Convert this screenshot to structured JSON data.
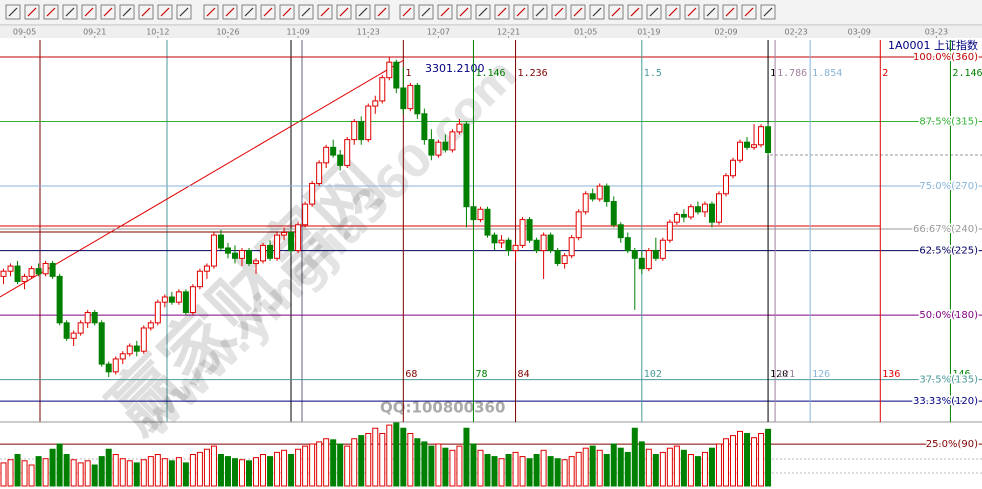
{
  "chart_data": {
    "type": "candlestick",
    "symbol": "1A0001",
    "name": "上证指数",
    "high_label": "3301.2100",
    "xlim": [
      -0.5,
      139.5
    ],
    "ylim": [
      16.3,
      103.3
    ],
    "volume_ylim": [
      0,
      60
    ],
    "up_color": "#e00000",
    "down_color": "#008000",
    "xticks": [
      {
        "value": 3,
        "label": "09-05"
      },
      {
        "value": 13,
        "label": "09-21"
      },
      {
        "value": 22,
        "label": "10-12"
      },
      {
        "value": 32,
        "label": "10-26"
      },
      {
        "value": 42,
        "label": "11-09"
      },
      {
        "value": 52,
        "label": "11-23"
      },
      {
        "value": 62,
        "label": "12-07"
      },
      {
        "value": 72,
        "label": "12-21"
      },
      {
        "value": 83,
        "label": "01-05"
      },
      {
        "value": 92,
        "label": "01-19"
      },
      {
        "value": 103,
        "label": "02-09"
      },
      {
        "value": 113,
        "label": "02-23"
      },
      {
        "value": 122,
        "label": "03-09"
      },
      {
        "value": 133,
        "label": "03-23"
      }
    ],
    "yticks": [
      {
        "value": 100,
        "label": "100.0%(360)",
        "color": "#c00000"
      },
      {
        "value": 87.5,
        "label": "87.5%(315)",
        "color": "#30b030"
      },
      {
        "value": 75,
        "label": "75.0%(270)",
        "color": "#88b4d8"
      },
      {
        "value": 66.67,
        "label": "66.67%(240)",
        "color": "#999999"
      },
      {
        "value": 62.5,
        "label": "62.5%(225)",
        "color": "#000060"
      },
      {
        "value": 50,
        "label": "50.0%(180)",
        "color": "#800080"
      },
      {
        "value": 37.5,
        "label": "37.5%(135)",
        "color": "#4a9a9a"
      },
      {
        "value": 33.33,
        "label": "33.33%(120)",
        "color": "#000080"
      },
      {
        "value": 25,
        "label": "25.0%(90)",
        "color": "#800000"
      }
    ],
    "time_lines": [
      {
        "top": "1",
        "count": 68,
        "color": "#800000"
      },
      {
        "top": "1.146",
        "count": 78,
        "color": "#008000"
      },
      {
        "top": "1.236",
        "count": 84,
        "color": "#800000"
      },
      {
        "top": "1.5",
        "count": 102,
        "color": "#4a9a9a"
      },
      {
        "top": "1",
        "count": 120,
        "color": "#000000"
      },
      {
        "top": "1.786",
        "count": 121,
        "color": "#a080a0"
      },
      {
        "top": "1.854",
        "count": 126,
        "color": "#88b4d8"
      },
      {
        "top": "2",
        "count": 136,
        "color": "#e00000"
      },
      {
        "top": "2.146",
        "count": 146,
        "color": "#008000"
      }
    ],
    "watermarks": [
      "赢家财富网",
      "www.yingjia360.com",
      "QQ:100800360"
    ],
    "ohlc": [
      [
        57.5,
        59,
        56,
        58.5
      ],
      [
        58.5,
        60,
        57.5,
        59.5
      ],
      [
        59.5,
        60.5,
        56,
        56.5
      ],
      [
        56.5,
        58,
        55,
        57.5
      ],
      [
        57.5,
        59.5,
        57,
        59
      ],
      [
        59,
        60,
        57.5,
        58
      ],
      [
        58,
        60.5,
        57.5,
        60
      ],
      [
        60,
        60.5,
        57,
        57.5
      ],
      [
        57.5,
        58,
        48,
        48.5
      ],
      [
        48.5,
        49,
        45,
        45.5
      ],
      [
        45.5,
        47,
        44,
        46.5
      ],
      [
        46.5,
        49,
        46,
        48.5
      ],
      [
        48.5,
        51,
        47.5,
        50.5
      ],
      [
        50.5,
        51,
        48,
        48.5
      ],
      [
        48.5,
        49,
        40,
        40.5
      ],
      [
        40.5,
        41,
        38,
        39
      ],
      [
        39,
        42,
        38.5,
        41.5
      ],
      [
        41.5,
        43,
        40.5,
        42.5
      ],
      [
        42.5,
        44.5,
        42,
        44
      ],
      [
        44,
        45,
        42,
        43
      ],
      [
        43,
        48,
        42.5,
        47.5
      ],
      [
        47.5,
        49,
        47,
        48.5
      ],
      [
        48.5,
        53,
        48,
        52.5
      ],
      [
        52.5,
        54,
        51.5,
        53.5
      ],
      [
        53.5,
        54.5,
        52,
        52.5
      ],
      [
        52.5,
        55,
        52,
        54.5
      ],
      [
        54.5,
        55,
        50,
        50.5
      ],
      [
        50.5,
        56,
        50,
        55.5
      ],
      [
        55.5,
        59,
        55,
        58.5
      ],
      [
        58.5,
        60,
        57,
        59.5
      ],
      [
        59.5,
        66,
        59,
        65.5
      ],
      [
        65.5,
        66.5,
        62.5,
        63
      ],
      [
        63,
        64,
        61,
        62
      ],
      [
        62,
        63.5,
        60,
        61
      ],
      [
        61,
        63,
        59.5,
        62.5
      ],
      [
        62.5,
        63,
        59.5,
        60
      ],
      [
        60,
        61,
        58,
        60.5
      ],
      [
        60.5,
        64,
        60,
        63.5
      ],
      [
        63.5,
        64.5,
        60.5,
        61
      ],
      [
        61,
        66,
        60.5,
        65.5
      ],
      [
        65.5,
        67,
        64.5,
        66
      ],
      [
        66,
        66.5,
        62,
        62.5
      ],
      [
        62.5,
        68,
        62,
        67.5
      ],
      [
        67.5,
        72,
        67,
        71.5
      ],
      [
        71.5,
        76,
        71,
        75.5
      ],
      [
        75.5,
        80,
        75,
        79.5
      ],
      [
        79.5,
        83,
        78.5,
        82.5
      ],
      [
        82.5,
        84,
        80.5,
        81
      ],
      [
        81,
        82,
        78,
        79
      ],
      [
        79,
        84.5,
        78.5,
        84
      ],
      [
        84,
        88,
        83,
        87.5
      ],
      [
        87.5,
        88.5,
        83,
        84
      ],
      [
        84,
        91,
        83.5,
        90.5
      ],
      [
        90.5,
        92.5,
        89,
        91.5
      ],
      [
        91.5,
        96.5,
        91,
        96
      ],
      [
        96,
        100,
        95.5,
        99
      ],
      [
        99,
        99.5,
        93,
        94
      ],
      [
        94,
        98,
        89,
        90
      ],
      [
        90,
        95,
        89.5,
        94.5
      ],
      [
        94.5,
        95,
        88,
        89
      ],
      [
        89,
        90,
        83,
        84
      ],
      [
        84,
        86,
        80,
        81
      ],
      [
        81,
        84,
        80.5,
        83.5
      ],
      [
        83.5,
        85,
        81.5,
        82
      ],
      [
        82,
        86,
        81.5,
        85.5
      ],
      [
        85.5,
        88,
        85,
        87
      ],
      [
        87,
        87.5,
        67,
        71
      ],
      [
        71,
        72,
        67,
        68.5
      ],
      [
        68.5,
        71,
        68,
        70.5
      ],
      [
        70.5,
        71,
        65,
        65.5
      ],
      [
        65.5,
        66,
        62.5,
        64
      ],
      [
        64,
        65.5,
        63,
        64.5
      ],
      [
        64.5,
        65,
        61.5,
        62.5
      ],
      [
        62.5,
        64,
        60.5,
        63.5
      ],
      [
        63.5,
        69,
        63,
        68.5
      ],
      [
        68.5,
        69,
        64,
        64.5
      ],
      [
        64.5,
        65,
        62,
        62.5
      ],
      [
        62.5,
        66,
        57,
        65.5
      ],
      [
        65.5,
        66,
        62,
        62.5
      ],
      [
        62.5,
        63,
        59.5,
        60
      ],
      [
        60,
        62,
        59,
        61.5
      ],
      [
        61.5,
        65.5,
        61,
        65
      ],
      [
        65,
        70.5,
        64.5,
        70
      ],
      [
        70,
        74,
        69.5,
        73.5
      ],
      [
        73.5,
        74.5,
        72,
        72.5
      ],
      [
        72.5,
        75.5,
        72,
        75
      ],
      [
        75,
        75.5,
        71,
        72
      ],
      [
        72,
        73,
        67,
        67.5
      ],
      [
        67.5,
        68,
        64,
        65
      ],
      [
        65,
        66,
        62,
        62.5
      ],
      [
        62.5,
        63,
        51,
        61
      ],
      [
        61,
        62.5,
        58,
        59
      ],
      [
        59,
        63,
        58.5,
        62.5
      ],
      [
        62.5,
        65,
        60.5,
        61
      ],
      [
        61,
        65,
        60.5,
        64.5
      ],
      [
        64.5,
        68.5,
        64,
        68
      ],
      [
        68,
        70,
        67.5,
        69.5
      ],
      [
        69.5,
        70.5,
        68,
        69
      ],
      [
        69,
        71.5,
        68.5,
        71
      ],
      [
        71,
        72,
        69.5,
        70
      ],
      [
        70,
        72,
        69,
        71.5
      ],
      [
        71.5,
        72,
        67,
        68
      ],
      [
        68,
        74,
        67.5,
        73.5
      ],
      [
        73.5,
        77.5,
        73,
        77
      ],
      [
        77,
        80.5,
        76.5,
        80
      ],
      [
        80,
        84,
        79.5,
        83.5
      ],
      [
        83.5,
        84.5,
        82,
        82.5
      ],
      [
        82.5,
        87,
        82,
        83
      ],
      [
        83,
        87,
        82.5,
        86.5
      ],
      [
        86.5,
        87,
        81,
        81.5
      ]
    ],
    "volume": [
      22,
      25,
      30,
      24,
      20,
      28,
      26,
      35,
      40,
      30,
      25,
      22,
      24,
      20,
      28,
      35,
      30,
      26,
      24,
      22,
      25,
      28,
      30,
      26,
      24,
      27,
      22,
      30,
      32,
      35,
      38,
      30,
      28,
      26,
      25,
      24,
      27,
      30,
      28,
      32,
      34,
      30,
      35,
      38,
      40,
      42,
      45,
      44,
      40,
      38,
      45,
      48,
      50,
      55,
      50,
      58,
      60,
      55,
      50,
      45,
      42,
      38,
      40,
      36,
      34,
      38,
      55,
      40,
      34,
      30,
      28,
      26,
      30,
      32,
      28,
      26,
      30,
      34,
      28,
      26,
      25,
      28,
      32,
      36,
      38,
      34,
      30,
      40,
      36,
      32,
      55,
      42,
      35,
      30,
      32,
      36,
      38,
      34,
      30,
      28,
      32,
      36,
      40,
      45,
      48,
      52,
      50,
      46,
      50,
      54
    ]
  }
}
